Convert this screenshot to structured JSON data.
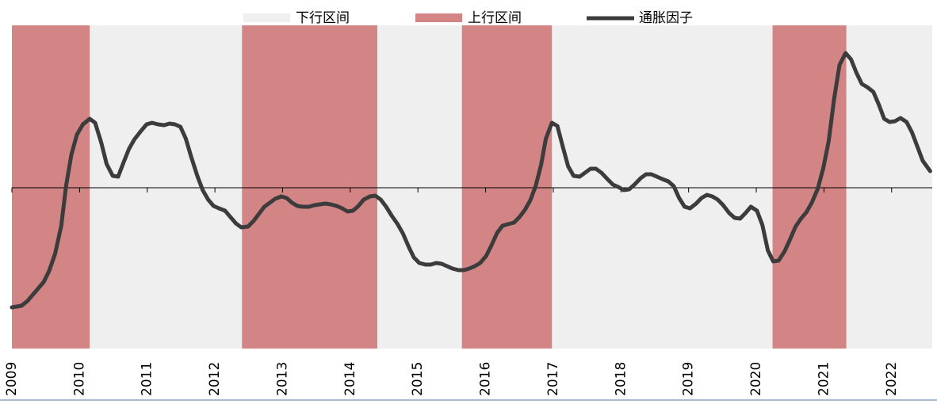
{
  "chart_data": {
    "type": "line",
    "bands": [
      {
        "name": "下行区间",
        "color": "#efefef"
      },
      {
        "name": "上行区间",
        "color": "#d38585",
        "ranges": [
          [
            2009,
            2010.15
          ],
          [
            2012.4,
            2014.4
          ],
          [
            2015.65,
            2016.98
          ],
          [
            2020.24,
            2021.33
          ]
        ]
      }
    ],
    "series": [
      {
        "name": "通胀因子",
        "color": "#3c3c3c",
        "x": [
          2009.0,
          2009.14,
          2009.23,
          2009.35,
          2009.47,
          2009.55,
          2009.64,
          2009.73,
          2009.8,
          2009.88,
          2009.96,
          2010.05,
          2010.15,
          2010.23,
          2010.32,
          2010.4,
          2010.49,
          2010.57,
          2010.65,
          2010.73,
          2010.81,
          2010.91,
          2010.99,
          2011.07,
          2011.16,
          2011.25,
          2011.33,
          2011.41,
          2011.49,
          2011.57,
          2011.65,
          2011.74,
          2011.82,
          2011.9,
          2011.98,
          2012.06,
          2012.15,
          2012.23,
          2012.31,
          2012.39,
          2012.49,
          2012.57,
          2012.65,
          2012.73,
          2012.81,
          2012.89,
          2012.98,
          2013.06,
          2013.14,
          2013.22,
          2013.3,
          2013.39,
          2013.47,
          2013.55,
          2013.63,
          2013.71,
          2013.8,
          2013.88,
          2013.96,
          2014.04,
          2014.12,
          2014.2,
          2014.29,
          2014.37,
          2014.45,
          2014.53,
          2014.61,
          2014.7,
          2014.78,
          2014.86,
          2014.94,
          2015.02,
          2015.11,
          2015.19,
          2015.27,
          2015.35,
          2015.43,
          2015.51,
          2015.6,
          2015.68,
          2015.76,
          2015.84,
          2015.92,
          2016.01,
          2016.09,
          2016.17,
          2016.25,
          2016.33,
          2016.42,
          2016.5,
          2016.58,
          2016.66,
          2016.74,
          2016.82,
          2016.89,
          2016.98,
          2017.06,
          2017.14,
          2017.22,
          2017.3,
          2017.39,
          2017.47,
          2017.55,
          2017.63,
          2017.71,
          2017.8,
          2017.88,
          2017.96,
          2018.04,
          2018.12,
          2018.2,
          2018.29,
          2018.37,
          2018.45,
          2018.53,
          2018.61,
          2018.7,
          2018.78,
          2018.86,
          2018.94,
          2019.02,
          2019.11,
          2019.19,
          2019.27,
          2019.35,
          2019.43,
          2019.51,
          2019.6,
          2019.68,
          2019.76,
          2019.84,
          2019.92,
          2020.01,
          2020.09,
          2020.17,
          2020.25,
          2020.33,
          2020.42,
          2020.5,
          2020.58,
          2020.66,
          2020.74,
          2020.82,
          2020.91,
          2020.99,
          2021.07,
          2021.15,
          2021.23,
          2021.32,
          2021.4,
          2021.48,
          2021.56,
          2021.64,
          2021.73,
          2021.81,
          2021.89,
          2021.97,
          2022.05,
          2022.13,
          2022.22,
          2022.3,
          2022.38,
          2022.46,
          2022.57
        ],
        "values": [
          -1.51,
          -1.49,
          -1.43,
          -1.31,
          -1.19,
          -1.05,
          -0.83,
          -0.48,
          0.02,
          0.42,
          0.67,
          0.8,
          0.87,
          0.82,
          0.57,
          0.3,
          0.15,
          0.14,
          0.32,
          0.49,
          0.61,
          0.72,
          0.8,
          0.82,
          0.8,
          0.79,
          0.81,
          0.8,
          0.77,
          0.62,
          0.39,
          0.15,
          -0.03,
          -0.15,
          -0.23,
          -0.26,
          -0.29,
          -0.37,
          -0.45,
          -0.5,
          -0.49,
          -0.42,
          -0.33,
          -0.24,
          -0.19,
          -0.14,
          -0.11,
          -0.13,
          -0.19,
          -0.23,
          -0.24,
          -0.24,
          -0.22,
          -0.21,
          -0.2,
          -0.21,
          -0.23,
          -0.26,
          -0.3,
          -0.29,
          -0.23,
          -0.15,
          -0.11,
          -0.1,
          -0.15,
          -0.24,
          -0.35,
          -0.46,
          -0.58,
          -0.74,
          -0.88,
          -0.95,
          -0.97,
          -0.97,
          -0.95,
          -0.96,
          -0.99,
          -1.02,
          -1.04,
          -1.04,
          -1.02,
          -0.99,
          -0.95,
          -0.86,
          -0.72,
          -0.57,
          -0.48,
          -0.46,
          -0.44,
          -0.37,
          -0.28,
          -0.16,
          0.02,
          0.29,
          0.62,
          0.82,
          0.78,
          0.52,
          0.27,
          0.15,
          0.14,
          0.19,
          0.24,
          0.24,
          0.19,
          0.11,
          0.04,
          0.01,
          -0.03,
          -0.02,
          0.04,
          0.12,
          0.17,
          0.17,
          0.14,
          0.11,
          0.08,
          0.02,
          -0.13,
          -0.24,
          -0.26,
          -0.2,
          -0.13,
          -0.09,
          -0.11,
          -0.15,
          -0.22,
          -0.32,
          -0.38,
          -0.39,
          -0.32,
          -0.24,
          -0.29,
          -0.47,
          -0.79,
          -0.93,
          -0.92,
          -0.8,
          -0.65,
          -0.49,
          -0.39,
          -0.31,
          -0.19,
          -0.01,
          0.25,
          0.59,
          1.12,
          1.55,
          1.7,
          1.62,
          1.45,
          1.31,
          1.27,
          1.21,
          1.05,
          0.87,
          0.83,
          0.84,
          0.88,
          0.83,
          0.7,
          0.52,
          0.34,
          0.21
        ]
      }
    ],
    "xlim": [
      2009,
      2022.6
    ],
    "xticks": [
      2009,
      2010,
      2011,
      2012,
      2013,
      2014,
      2015,
      2016,
      2017,
      2018,
      2019,
      2020,
      2021,
      2022
    ],
    "ylim": [
      -2.03,
      2.05
    ]
  }
}
